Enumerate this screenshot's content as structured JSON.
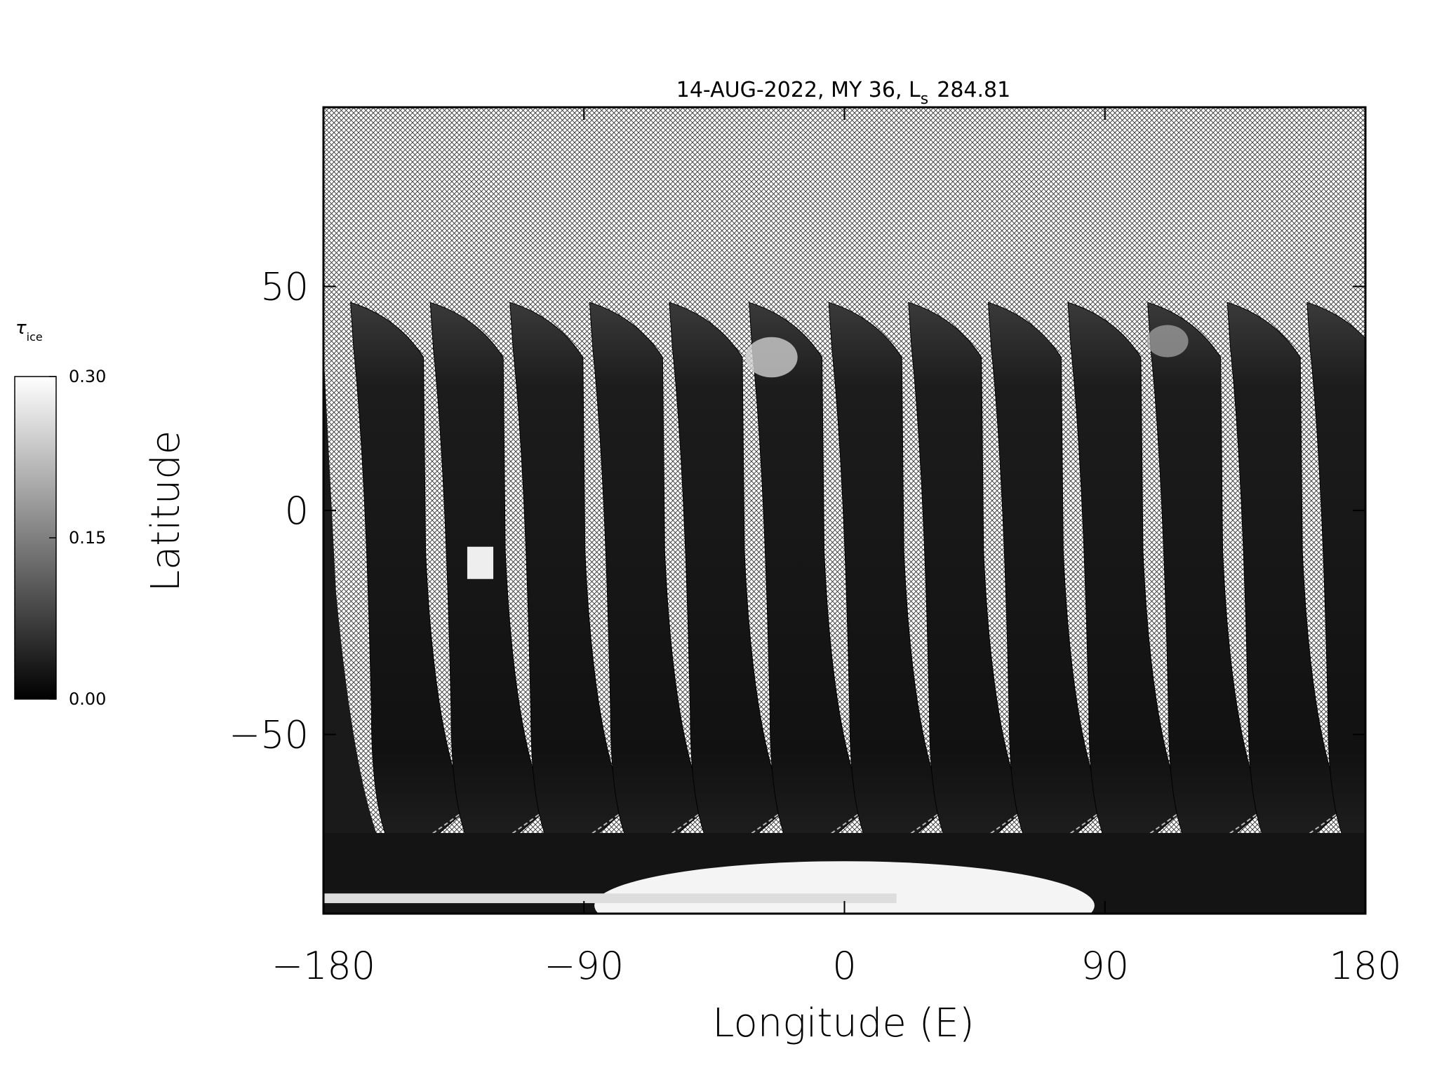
{
  "chart_data": {
    "type": "image",
    "title": "14-AUG-2022, MY 36,  L",
    "title_subscript": "s",
    "title_value": "284.81",
    "xlabel": "Longitude (E)",
    "ylabel": "Latitude",
    "xlim": [
      -180,
      180
    ],
    "ylim": [
      -90,
      90
    ],
    "xticks": [
      {
        "value": -180,
        "label": "−180"
      },
      {
        "value": -90,
        "label": "−90"
      },
      0,
      90,
      180
    ],
    "yticks": [
      {
        "value": -50,
        "label": "−50"
      },
      0,
      50
    ],
    "colorbar": {
      "label": "τ",
      "label_subscript": "ice",
      "lim": [
        0,
        0.3
      ],
      "ticks": [
        {
          "value": 0,
          "label": "0.00"
        },
        {
          "value": 0.15,
          "label": "0.15"
        },
        {
          "value": 0.3,
          "label": "0.30"
        }
      ],
      "colors": [
        "#000000",
        "#ffffff"
      ]
    }
  }
}
